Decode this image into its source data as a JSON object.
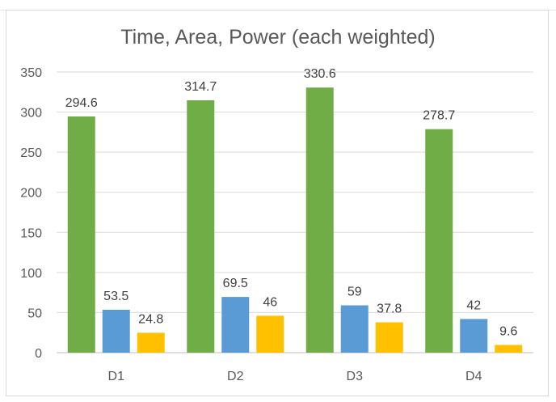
{
  "chart_data": {
    "type": "bar",
    "title": "Time, Area, Power (each  weighted)",
    "categories": [
      "D1",
      "D2",
      "D3",
      "D4"
    ],
    "series": [
      {
        "name": "",
        "color": "#70ad47",
        "values": [
          294.6,
          314.7,
          330.6,
          278.7
        ]
      },
      {
        "name": "",
        "color": "#5b9bd5",
        "values": [
          53.5,
          69.5,
          59,
          42
        ]
      },
      {
        "name": "",
        "color": "#ffc000",
        "values": [
          24.8,
          46,
          37.8,
          9.6
        ]
      }
    ],
    "ylim": [
      0,
      350
    ],
    "yticks": [
      0,
      50,
      100,
      150,
      200,
      250,
      300,
      350
    ],
    "xlabel": "",
    "ylabel": "",
    "grid": true,
    "data_labels": true
  }
}
